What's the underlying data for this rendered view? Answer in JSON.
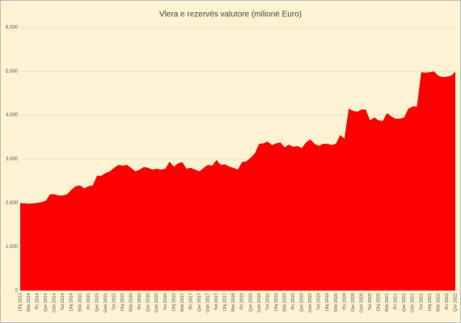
{
  "chart_data": {
    "type": "area",
    "title": "Vlera e rezervës valutore (milionë Euro)",
    "color": "#ff0000",
    "grid": true,
    "ylim": [
      0,
      6000
    ],
    "yticks": [
      0,
      {
        "value": 1000,
        "label": "1,000"
      },
      {
        "value": 2000,
        "label": "2,000"
      },
      {
        "value": 3000,
        "label": "3,000"
      },
      {
        "value": 4000,
        "label": "4,000"
      },
      {
        "value": 5000,
        "label": "5,000"
      },
      {
        "value": 6000,
        "label": "6,000"
      }
    ],
    "categories": [
      "Dhj 2013",
      null,
      "Shk 2014",
      null,
      "Pri 2014",
      null,
      "Qer 2014",
      null,
      "Gsh 2014",
      null,
      "Tet 2014",
      null,
      "Dhj 2014",
      null,
      "Shk 2015",
      null,
      "Pri 2015",
      null,
      "Qer 2015",
      null,
      "Gsh 2015",
      null,
      "Tet 2015",
      null,
      "Dhj 2015",
      null,
      "Shk 2016",
      null,
      "Pri 2016",
      null,
      "Qer 2016",
      null,
      "Gsh 2016",
      null,
      "Tet 2016",
      null,
      "Dhj 2016",
      null,
      "Shk 2017",
      null,
      "Pri 2017",
      null,
      "Qer 2017",
      null,
      "Gsh 2017",
      null,
      "Tet 2017",
      null,
      "Dhj 2017",
      null,
      "Shk 2018",
      null,
      "Pri 2018",
      null,
      "Qer 2018",
      null,
      "Gsh 2018",
      null,
      "Tet 2018",
      null,
      "Dhj 2018",
      null,
      "Shk 2019",
      null,
      "Pri 2019",
      null,
      "Qer 2019",
      null,
      "Gsh 2019",
      null,
      "Tet 2019",
      null,
      "Dhj 2019",
      null,
      "Shk 2020",
      null,
      "Pri 2020",
      null,
      "Qer 2020",
      null,
      "Gsh 2020",
      null,
      "Tet 2020",
      null,
      "Dhj 2020",
      null,
      "Shk 2021",
      null,
      "Pri 2021",
      null,
      "Qer 2021",
      null,
      "Gsh 2021",
      null,
      "Tet 2021",
      null,
      "Dhj 2021",
      null,
      "Shk 2022",
      null,
      "Pri 2022",
      null,
      "Qer 2022"
    ],
    "values": [
      2000,
      1990,
      1980,
      1990,
      2000,
      2020,
      2050,
      2200,
      2200,
      2170,
      2170,
      2200,
      2300,
      2380,
      2400,
      2330,
      2380,
      2400,
      2620,
      2620,
      2680,
      2720,
      2800,
      2870,
      2850,
      2870,
      2800,
      2720,
      2760,
      2820,
      2800,
      2760,
      2780,
      2760,
      2780,
      2940,
      2830,
      2900,
      2930,
      2780,
      2800,
      2760,
      2720,
      2800,
      2870,
      2850,
      2980,
      2870,
      2880,
      2830,
      2800,
      2760,
      2930,
      2950,
      3030,
      3130,
      3350,
      3360,
      3400,
      3320,
      3360,
      3380,
      3270,
      3330,
      3280,
      3300,
      3250,
      3380,
      3450,
      3350,
      3300,
      3350,
      3350,
      3320,
      3350,
      3550,
      3470,
      4150,
      4100,
      4080,
      4130,
      4130,
      3880,
      3950,
      3880,
      3870,
      4050,
      3970,
      3920,
      3920,
      3950,
      4150,
      4200,
      4200,
      4980,
      4970,
      4980,
      5000,
      4900,
      4870,
      4880,
      4900,
      4990
    ]
  }
}
